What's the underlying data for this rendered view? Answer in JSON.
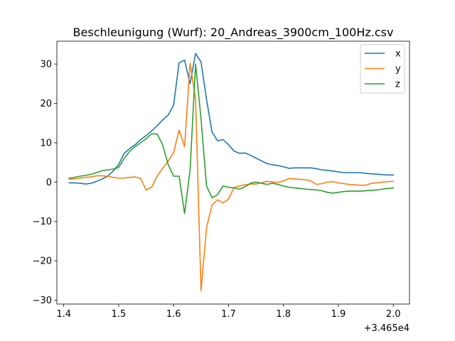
{
  "chart_data": {
    "type": "line",
    "title": "Beschleunigung (Wurf): 20_Andreas_3900cm_100Hz.csv",
    "xlabel": "",
    "ylabel": "",
    "x_offset_label": "+3.465e4",
    "xlim": [
      1.3875,
      2.0295
    ],
    "ylim": [
      -31.0,
      35.8
    ],
    "xticks": [
      1.4,
      1.5,
      1.6,
      1.7,
      1.8,
      1.9,
      2.0
    ],
    "xtick_labels": [
      "1.4",
      "1.5",
      "1.6",
      "1.7",
      "1.8",
      "1.9",
      "2.0"
    ],
    "yticks": [
      -30,
      -20,
      -10,
      0,
      10,
      20,
      30
    ],
    "ytick_labels": [
      "−30",
      "−20",
      "−10",
      "0",
      "10",
      "20",
      "30"
    ],
    "legend_position": "top-right",
    "x": [
      1.41,
      1.42,
      1.43,
      1.44,
      1.45,
      1.46,
      1.47,
      1.48,
      1.49,
      1.5,
      1.51,
      1.52,
      1.53,
      1.54,
      1.55,
      1.56,
      1.57,
      1.58,
      1.59,
      1.6,
      1.61,
      1.62,
      1.63,
      1.64,
      1.65,
      1.66,
      1.67,
      1.68,
      1.69,
      1.7,
      1.71,
      1.72,
      1.73,
      1.74,
      1.75,
      1.76,
      1.77,
      1.78,
      1.79,
      1.8,
      1.81,
      1.82,
      1.83,
      1.84,
      1.85,
      1.86,
      1.87,
      1.88,
      1.89,
      1.9,
      1.91,
      1.92,
      1.93,
      1.94,
      1.95,
      1.96,
      1.97,
      1.98,
      1.99,
      2.0
    ],
    "series": [
      {
        "name": "x",
        "color": "#1f77b4",
        "values": [
          -0.2,
          -0.2,
          -0.3,
          -0.5,
          -0.3,
          0.2,
          0.8,
          1.5,
          2.8,
          4.5,
          7.3,
          8.5,
          9.5,
          10.8,
          11.8,
          13.0,
          14.3,
          15.8,
          17.0,
          19.5,
          30.3,
          31.0,
          25.0,
          32.7,
          30.5,
          21.0,
          12.7,
          10.5,
          10.8,
          9.5,
          7.9,
          7.3,
          7.4,
          6.8,
          6.1,
          5.4,
          4.7,
          4.4,
          4.2,
          3.9,
          3.5,
          3.6,
          3.6,
          3.6,
          3.6,
          3.4,
          3.1,
          3.0,
          2.8,
          2.6,
          2.4,
          2.4,
          2.4,
          2.4,
          2.2,
          2.1,
          2.0,
          1.9,
          1.8,
          1.8
        ]
      },
      {
        "name": "y",
        "color": "#ff7f0e",
        "values": [
          0.7,
          0.8,
          1.0,
          1.2,
          1.3,
          1.6,
          1.6,
          1.5,
          1.2,
          1.0,
          1.0,
          1.2,
          1.3,
          0.9,
          -2.0,
          -1.3,
          1.5,
          3.5,
          5.3,
          7.5,
          13.2,
          9.0,
          30.2,
          21.0,
          -27.6,
          -11.6,
          -5.8,
          -4.5,
          -5.3,
          -4.3,
          -1.4,
          -1.0,
          -0.7,
          -0.5,
          -0.5,
          -0.2,
          0.2,
          0.0,
          -0.1,
          0.3,
          0.9,
          0.8,
          0.7,
          0.6,
          0.3,
          -0.6,
          -0.4,
          0.0,
          0.1,
          -0.2,
          -0.4,
          -0.6,
          -0.7,
          -0.8,
          -0.8,
          -0.3,
          -0.2,
          0.0,
          0.1,
          0.2
        ]
      },
      {
        "name": "z",
        "color": "#2ca02c",
        "values": [
          1.0,
          1.2,
          1.5,
          1.7,
          2.0,
          2.4,
          2.9,
          3.1,
          3.3,
          3.7,
          6.0,
          7.8,
          9.0,
          10.0,
          11.0,
          12.3,
          12.2,
          9.5,
          4.5,
          1.5,
          1.5,
          -8.0,
          3.0,
          30.0,
          16.0,
          -1.0,
          -4.0,
          -3.2,
          -1.0,
          -1.3,
          -1.5,
          -1.8,
          -1.2,
          -0.3,
          0.0,
          -0.3,
          -0.6,
          -0.3,
          -0.6,
          -1.0,
          -1.3,
          -1.5,
          -1.6,
          -1.8,
          -1.9,
          -2.0,
          -2.2,
          -2.6,
          -2.8,
          -2.6,
          -2.4,
          -2.3,
          -2.3,
          -2.3,
          -2.2,
          -2.1,
          -2.0,
          -1.8,
          -1.6,
          -1.5
        ]
      }
    ]
  }
}
